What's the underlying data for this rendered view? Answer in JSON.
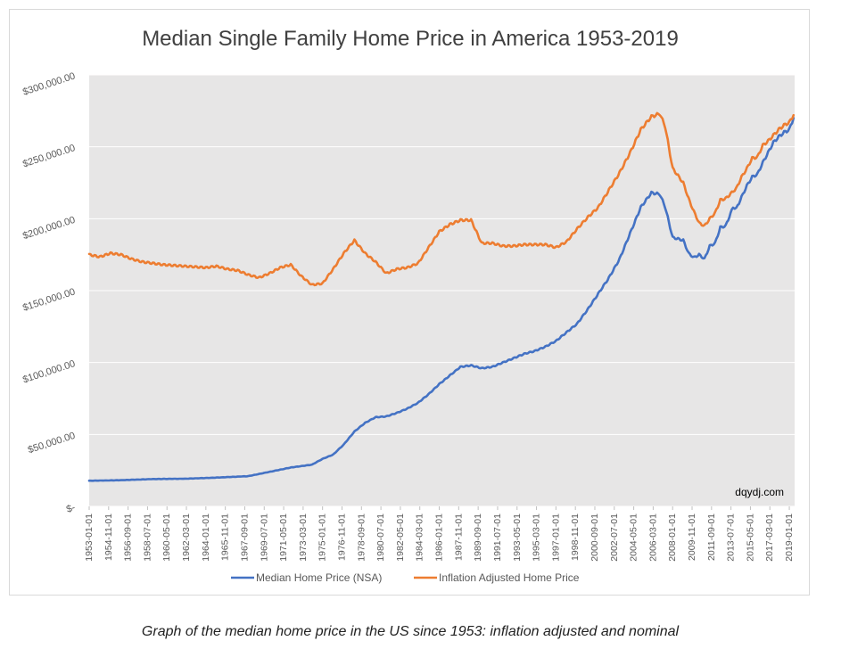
{
  "chart_data": {
    "type": "line",
    "title": "Median Single Family Home Price in America 1953-2019",
    "xlabel": "",
    "ylabel": "",
    "ylim": [
      0,
      300000
    ],
    "yticks": [
      {
        "value": 0,
        "label": "$-"
      },
      {
        "value": 50000,
        "label": "$50,000.00"
      },
      {
        "value": 100000,
        "label": "$100,000.00"
      },
      {
        "value": 150000,
        "label": "$150,000.00"
      },
      {
        "value": 200000,
        "label": "$200,000.00"
      },
      {
        "value": 250000,
        "label": "$250,000.00"
      },
      {
        "value": 300000,
        "label": "$300,000.00"
      }
    ],
    "xlim": [
      1953.0,
      2019.5
    ],
    "xticks": [
      "1953-01-01",
      "1954-11-01",
      "1956-09-01",
      "1958-07-01",
      "1960-05-01",
      "1962-03-01",
      "1964-01-01",
      "1965-11-01",
      "1967-09-01",
      "1969-07-01",
      "1971-05-01",
      "1973-03-01",
      "1975-01-01",
      "1976-11-01",
      "1978-09-01",
      "1980-07-01",
      "1982-05-01",
      "1984-03-01",
      "1986-01-01",
      "1987-11-01",
      "1989-09-01",
      "1991-07-01",
      "1993-05-01",
      "1995-03-01",
      "1997-01-01",
      "1998-11-01",
      "2000-09-01",
      "2002-07-01",
      "2004-05-01",
      "2006-03-01",
      "2008-01-01",
      "2009-11-01",
      "2011-09-01",
      "2013-07-01",
      "2015-05-01",
      "2017-03-01",
      "2019-01-01"
    ],
    "watermark": "dqydj.com",
    "legend_position": "bottom",
    "series": [
      {
        "name": "Median Home Price (NSA)",
        "color": "#4472c4",
        "x": [
          1953,
          1956,
          1959,
          1962,
          1965,
          1968,
          1970,
          1972,
          1974,
          1975,
          1976,
          1977,
          1978,
          1979,
          1980,
          1981,
          1982,
          1983,
          1984,
          1985,
          1986,
          1987,
          1988,
          1989,
          1990,
          1991,
          1992,
          1993,
          1994,
          1995,
          1996,
          1997,
          1998,
          1999,
          2000,
          2001,
          2002,
          2003,
          2004,
          2005,
          2006,
          2006.8,
          2007.3,
          2008,
          2009,
          2009.5,
          2010,
          2010.5,
          2011,
          2011.5,
          2012,
          2012.5,
          2013,
          2013.7,
          2014,
          2014.5,
          2015,
          2015.5,
          2016,
          2016.5,
          2017,
          2017.5,
          2018,
          2018.5,
          2019,
          2019.4
        ],
        "values": [
          17800,
          18200,
          19000,
          19200,
          20000,
          21000,
          24000,
          27000,
          29000,
          33000,
          36000,
          43000,
          52000,
          58000,
          62000,
          62500,
          65000,
          68000,
          72000,
          78000,
          85000,
          91000,
          97000,
          98000,
          96000,
          97000,
          100000,
          103000,
          106000,
          108000,
          111000,
          115000,
          121000,
          127000,
          137000,
          148000,
          159000,
          172000,
          190000,
          208000,
          218000,
          217000,
          208000,
          187000,
          185000,
          176000,
          173000,
          175000,
          172000,
          181000,
          183000,
          194000,
          195000,
          208000,
          207000,
          215000,
          223000,
          229000,
          231000,
          239000,
          246000,
          253000,
          257000,
          260000,
          262000,
          270000
        ]
      },
      {
        "name": "Inflation Adjusted Home Price",
        "color": "#ed7d31",
        "x": [
          1953,
          1954,
          1955,
          1956,
          1957,
          1958,
          1960,
          1962,
          1964,
          1965,
          1966,
          1967,
          1968,
          1969,
          1970,
          1971,
          1972,
          1973,
          1974,
          1975,
          1976,
          1977,
          1978,
          1979,
          1980,
          1981,
          1982,
          1983,
          1984,
          1985,
          1986,
          1987,
          1988,
          1989,
          1990,
          1991,
          1992,
          1993,
          1994,
          1995,
          1996,
          1997,
          1998,
          1999,
          2000,
          2001,
          2002,
          2003,
          2004,
          2005,
          2006,
          2006.8,
          2007.3,
          2008,
          2009,
          2009.5,
          2010,
          2010.5,
          2011,
          2011.5,
          2012,
          2012.5,
          2013,
          2013.7,
          2014,
          2014.5,
          2015,
          2015.5,
          2016,
          2016.5,
          2017,
          2017.5,
          2018,
          2018.5,
          2019,
          2019.4
        ],
        "values": [
          175000,
          173500,
          176000,
          175000,
          172000,
          170000,
          168000,
          167000,
          166000,
          167000,
          165000,
          164000,
          161000,
          159000,
          162000,
          166000,
          168000,
          160000,
          154000,
          155000,
          165000,
          176000,
          185000,
          176000,
          170000,
          162000,
          165000,
          166000,
          169000,
          180000,
          191000,
          196000,
          199000,
          199000,
          183000,
          183000,
          181000,
          181000,
          182000,
          182000,
          182000,
          180000,
          184000,
          193000,
          201000,
          208000,
          220000,
          232000,
          246000,
          262000,
          271000,
          273000,
          264000,
          235000,
          225000,
          214000,
          205000,
          197000,
          195000,
          200000,
          204000,
          213000,
          214000,
          219000,
          221000,
          229000,
          235000,
          242000,
          243000,
          251000,
          254000,
          258000,
          262000,
          265000,
          267000,
          272000
        ]
      }
    ]
  },
  "caption": "Graph of the median home price in the US since 1953: inflation adjusted and nominal"
}
